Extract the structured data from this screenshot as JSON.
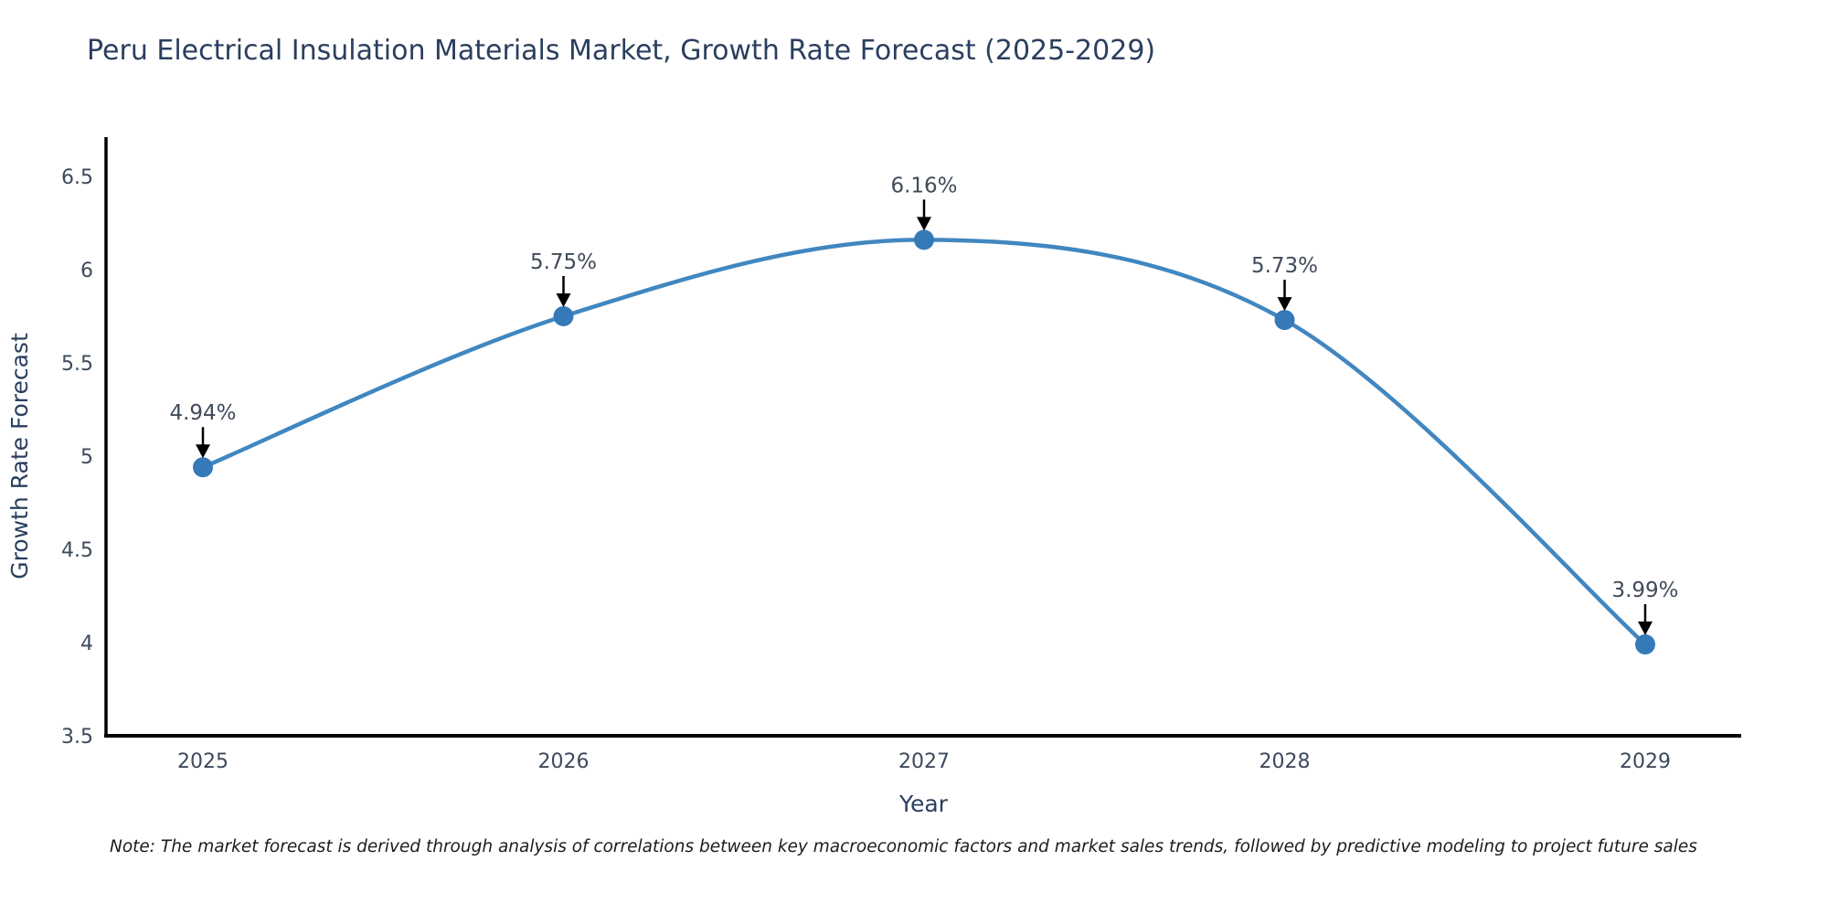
{
  "chart_data": {
    "type": "line",
    "title": "Peru Electrical Insulation Materials Market, Growth Rate Forecast (2025-2029)",
    "xlabel": "Year",
    "ylabel": "Growth Rate Forecast",
    "x": [
      "2025",
      "2026",
      "2027",
      "2028",
      "2029"
    ],
    "y": [
      4.94,
      5.75,
      6.16,
      5.73,
      3.99
    ],
    "point_labels": [
      "4.94%",
      "5.75%",
      "6.16%",
      "5.73%",
      "3.99%"
    ],
    "ylim": [
      3.5,
      6.5
    ],
    "yticks": [
      3.5,
      4,
      4.5,
      5,
      5.5,
      6,
      6.5
    ],
    "ytick_labels": [
      "3.5",
      "4",
      "4.5",
      "5",
      "5.5",
      "6",
      "6.5"
    ],
    "line_shape": "spline",
    "grid": false,
    "legend_position": "none",
    "colors": {
      "line": "#4187c0",
      "marker": "#3579b8",
      "axis_line": "#000000",
      "tick_text": "#3d4a5c",
      "title_text": "#2a3f5f",
      "annotation_text": "#404a59",
      "arrow": "#000000"
    }
  },
  "note": {
    "text": "Note: The market forecast is derived through analysis of correlations between key macroeconomic factors and market sales trends, followed by predictive modeling to project future sales"
  }
}
